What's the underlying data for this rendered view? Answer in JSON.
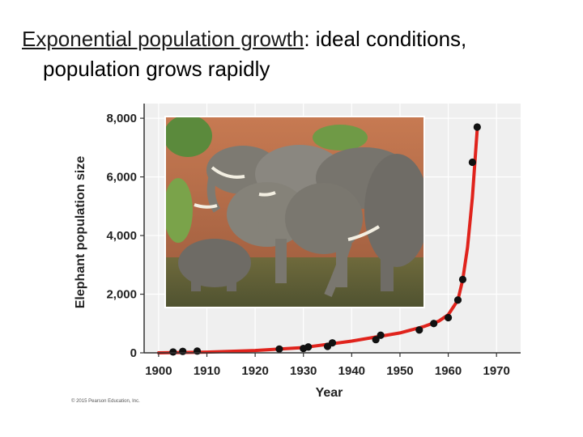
{
  "slide": {
    "title_term": "Exponential population growth",
    "title_rest": ": ideal conditions,",
    "title_line2": "population grows rapidly"
  },
  "copyright": "© 2015 Pearson Education, Inc.",
  "photo": {
    "subject": "elephants-drinking-photo"
  },
  "colors": {
    "plot_bg": "#efefef",
    "curve": "#e0231c",
    "point": "#111111",
    "grid": "#ffffff"
  },
  "chart_data": {
    "type": "scatter",
    "title": "",
    "xlabel": "Year",
    "ylabel": "Elephant population size",
    "xlim": [
      1897,
      1975
    ],
    "ylim": [
      0,
      8500
    ],
    "xticks": [
      1900,
      1910,
      1920,
      1930,
      1940,
      1950,
      1960,
      1970
    ],
    "yticks": [
      0,
      2000,
      4000,
      6000,
      8000
    ],
    "ytick_labels": [
      "0",
      "2,000",
      "4,000",
      "6,000",
      "8,000"
    ],
    "grid": true,
    "points": [
      {
        "x": 1903,
        "y": 30
      },
      {
        "x": 1905,
        "y": 50
      },
      {
        "x": 1908,
        "y": 60
      },
      {
        "x": 1925,
        "y": 130
      },
      {
        "x": 1930,
        "y": 150
      },
      {
        "x": 1931,
        "y": 200
      },
      {
        "x": 1935,
        "y": 220
      },
      {
        "x": 1936,
        "y": 340
      },
      {
        "x": 1945,
        "y": 450
      },
      {
        "x": 1946,
        "y": 600
      },
      {
        "x": 1954,
        "y": 780
      },
      {
        "x": 1957,
        "y": 1000
      },
      {
        "x": 1960,
        "y": 1200
      },
      {
        "x": 1962,
        "y": 1800
      },
      {
        "x": 1963,
        "y": 2500
      },
      {
        "x": 1965,
        "y": 6500
      },
      {
        "x": 1966,
        "y": 7700
      }
    ],
    "curve": [
      {
        "x": 1900,
        "y": 0
      },
      {
        "x": 1910,
        "y": 25
      },
      {
        "x": 1920,
        "y": 80
      },
      {
        "x": 1930,
        "y": 180
      },
      {
        "x": 1940,
        "y": 400
      },
      {
        "x": 1950,
        "y": 680
      },
      {
        "x": 1955,
        "y": 900
      },
      {
        "x": 1958,
        "y": 1080
      },
      {
        "x": 1960,
        "y": 1300
      },
      {
        "x": 1962,
        "y": 1800
      },
      {
        "x": 1963,
        "y": 2500
      },
      {
        "x": 1964,
        "y": 3600
      },
      {
        "x": 1965,
        "y": 5300
      },
      {
        "x": 1966,
        "y": 7600
      }
    ]
  }
}
